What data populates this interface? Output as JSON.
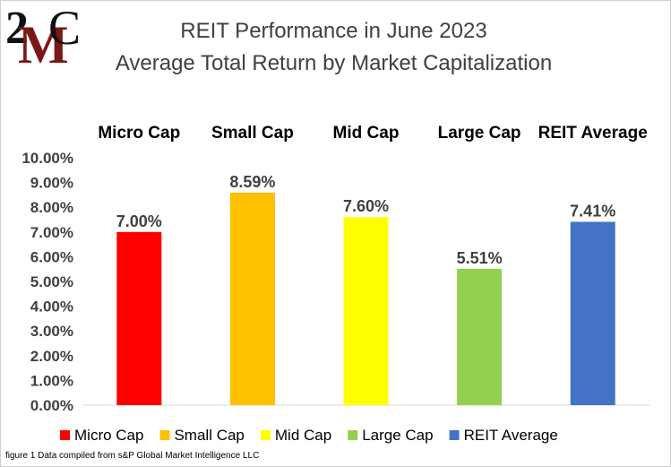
{
  "title_line1": "REIT Performance  in June 2023",
  "title_line2": "Average Total Return by Market Capitalization",
  "logo": {
    "two": "2",
    "m": "M",
    "c": "C"
  },
  "footnote": "figure 1 Data compiled from s&P Global Market Intelligence LLC",
  "colors": {
    "micro": "#ff0000",
    "small": "#ffc000",
    "mid": "#ffff00",
    "large": "#92d050",
    "average": "#4472c4"
  },
  "chart_data": {
    "type": "bar",
    "categories": [
      "Micro Cap",
      "Small Cap",
      "Mid Cap",
      "Large Cap",
      "REIT Average"
    ],
    "values": [
      7.0,
      8.59,
      7.6,
      5.51,
      7.41
    ],
    "value_labels": [
      "7.00%",
      "8.59%",
      "7.60%",
      "5.51%",
      "7.41%"
    ],
    "bar_colors": [
      "#ff0000",
      "#ffc000",
      "#ffff00",
      "#92d050",
      "#4472c4"
    ],
    "yticks": [
      "0.00%",
      "1.00%",
      "2.00%",
      "3.00%",
      "4.00%",
      "5.00%",
      "6.00%",
      "7.00%",
      "8.00%",
      "9.00%",
      "10.00%"
    ],
    "ylim": [
      0,
      10
    ],
    "grid": false,
    "legend_position": "bottom",
    "category_labels_position": "top"
  }
}
